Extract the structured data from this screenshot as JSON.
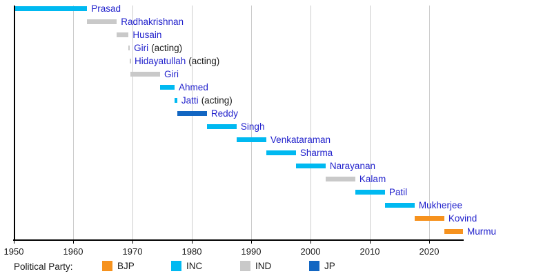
{
  "chart_data": {
    "type": "bar",
    "subtype": "timeline-gantt",
    "title": "",
    "xlabel": "",
    "ylabel": "",
    "x_range": [
      1950,
      2025.7
    ],
    "x_ticks": [
      1950,
      1960,
      1970,
      1980,
      1990,
      2000,
      2010,
      2020
    ],
    "grid": "vertical-decade-lines",
    "legend_position": "bottom",
    "legend_title": "Political Party:",
    "parties": [
      {
        "name": "BJP",
        "color": "#F6921E"
      },
      {
        "name": "INC",
        "color": "#00B9F1"
      },
      {
        "name": "IND",
        "color": "#C9C9C9"
      },
      {
        "name": "JP",
        "color": "#1266C2"
      }
    ],
    "bars": [
      {
        "label": "Prasad",
        "suffix": "",
        "party": "INC",
        "start": 1950.1,
        "end": 1962.35
      },
      {
        "label": "Radhakrishnan",
        "suffix": "",
        "party": "IND",
        "start": 1962.35,
        "end": 1967.35
      },
      {
        "label": "Husain",
        "suffix": "",
        "party": "IND",
        "start": 1967.35,
        "end": 1969.35
      },
      {
        "label": "Giri",
        "suffix": "(acting)",
        "party": "IND",
        "start": 1969.35,
        "end": 1969.55
      },
      {
        "label": "Hidayatullah",
        "suffix": "(acting)",
        "party": "IND",
        "start": 1969.55,
        "end": 1969.65
      },
      {
        "label": "Giri",
        "suffix": "",
        "party": "IND",
        "start": 1969.65,
        "end": 1974.65
      },
      {
        "label": "Ahmed",
        "suffix": "",
        "party": "INC",
        "start": 1974.65,
        "end": 1977.1
      },
      {
        "label": "Jatti",
        "suffix": "(acting)",
        "party": "INC",
        "start": 1977.1,
        "end": 1977.55
      },
      {
        "label": "Reddy",
        "suffix": "",
        "party": "JP",
        "start": 1977.55,
        "end": 1982.55
      },
      {
        "label": "Singh",
        "suffix": "",
        "party": "INC",
        "start": 1982.55,
        "end": 1987.55
      },
      {
        "label": "Venkataraman",
        "suffix": "",
        "party": "INC",
        "start": 1987.55,
        "end": 1992.55
      },
      {
        "label": "Sharma",
        "suffix": "",
        "party": "INC",
        "start": 1992.55,
        "end": 1997.55
      },
      {
        "label": "Narayanan",
        "suffix": "",
        "party": "INC",
        "start": 1997.55,
        "end": 2002.55
      },
      {
        "label": "Kalam",
        "suffix": "",
        "party": "IND",
        "start": 2002.55,
        "end": 2007.55
      },
      {
        "label": "Patil",
        "suffix": "",
        "party": "INC",
        "start": 2007.55,
        "end": 2012.55
      },
      {
        "label": "Mukherjee",
        "suffix": "",
        "party": "INC",
        "start": 2012.55,
        "end": 2017.55
      },
      {
        "label": "Kovind",
        "suffix": "",
        "party": "BJP",
        "start": 2017.55,
        "end": 2022.55
      },
      {
        "label": "Murmu",
        "suffix": "",
        "party": "BJP",
        "start": 2022.55,
        "end": 2025.7
      }
    ],
    "colors": {
      "bar_label": "#2222CC",
      "suffix_text": "#1A1A1A",
      "tick_text": "#1A1A1A",
      "axis": "#000000",
      "gridline": "#CCCCCC",
      "background": "#FFFFFF"
    }
  }
}
